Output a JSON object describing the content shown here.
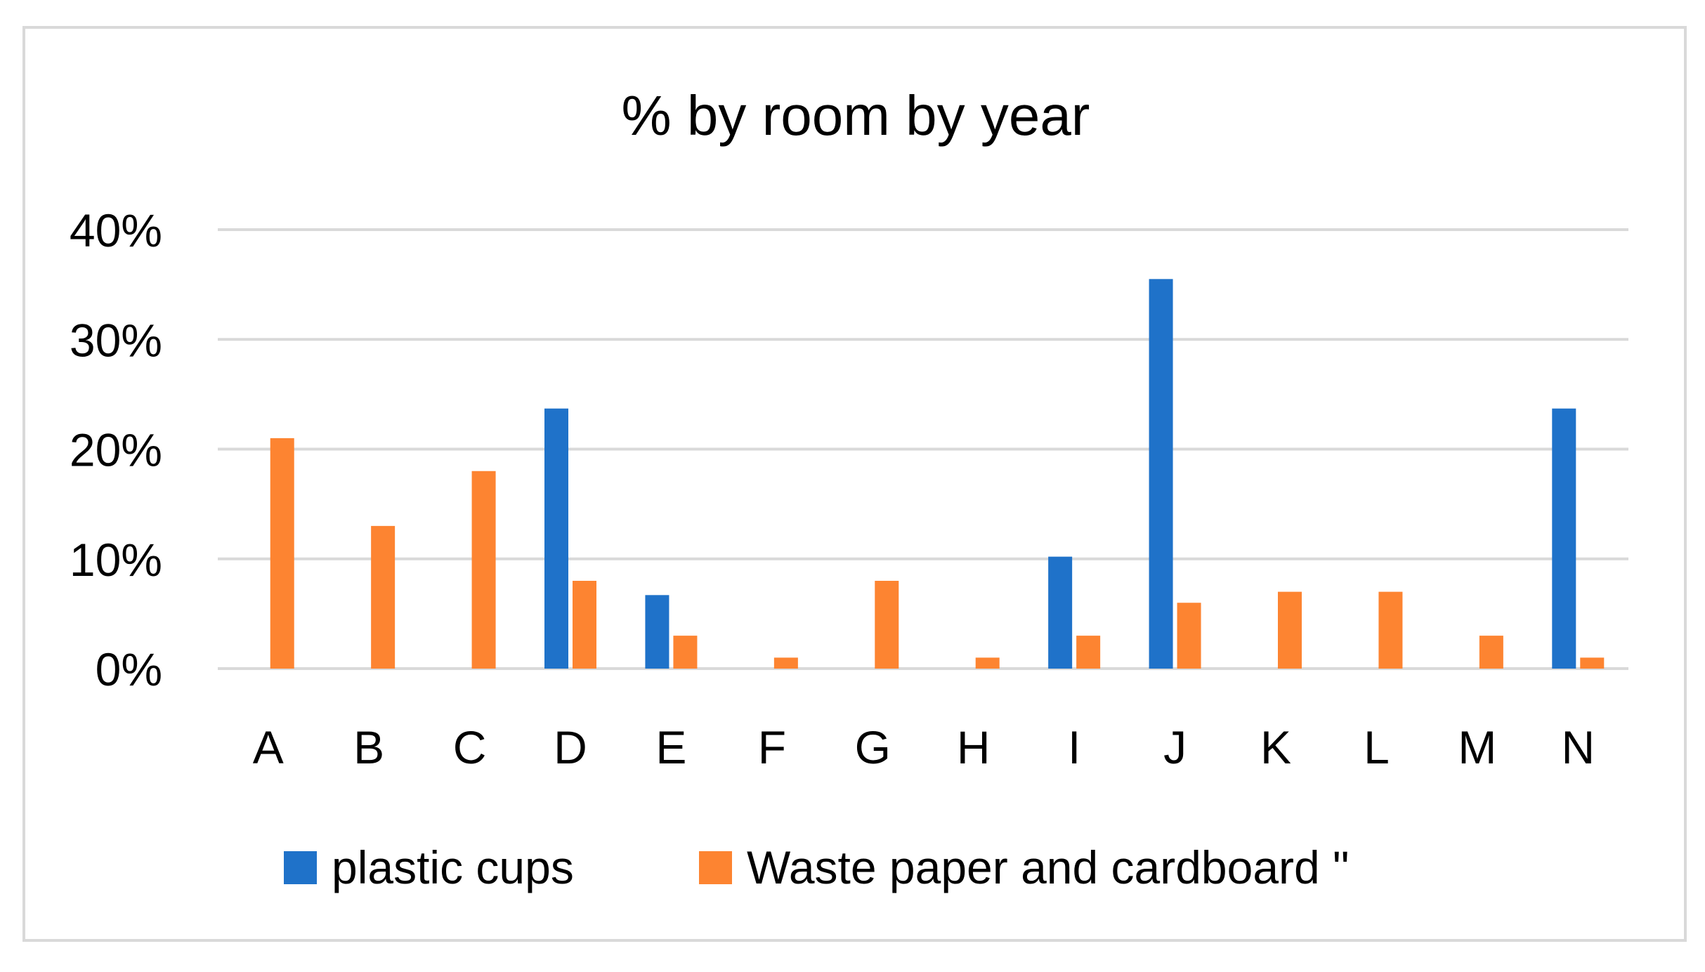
{
  "chart_data": {
    "type": "bar",
    "title": "% by room by year",
    "categories": [
      "A",
      "B",
      "C",
      "D",
      "E",
      "F",
      "G",
      "H",
      "I",
      "J",
      "K",
      "L",
      "M",
      "N"
    ],
    "series": [
      {
        "name": "plastic cups",
        "color": "#1f72c9",
        "values": [
          0,
          0,
          0,
          23.7,
          6.7,
          0,
          0,
          0,
          10.2,
          35.5,
          0,
          0,
          0,
          23.7
        ]
      },
      {
        "name": "Waste paper and cardboard \"",
        "color": "#fd8431",
        "values": [
          21,
          13,
          18,
          8,
          3,
          1,
          8,
          1,
          3,
          6,
          7,
          7,
          3,
          1
        ]
      }
    ],
    "y_ticks": [
      "0%",
      "10%",
      "20%",
      "30%",
      "40%"
    ],
    "ylim": [
      0,
      40
    ],
    "y_unit": "%",
    "grid": true,
    "gridline_color": "#d9d9d9",
    "legend_position": "bottom"
  }
}
